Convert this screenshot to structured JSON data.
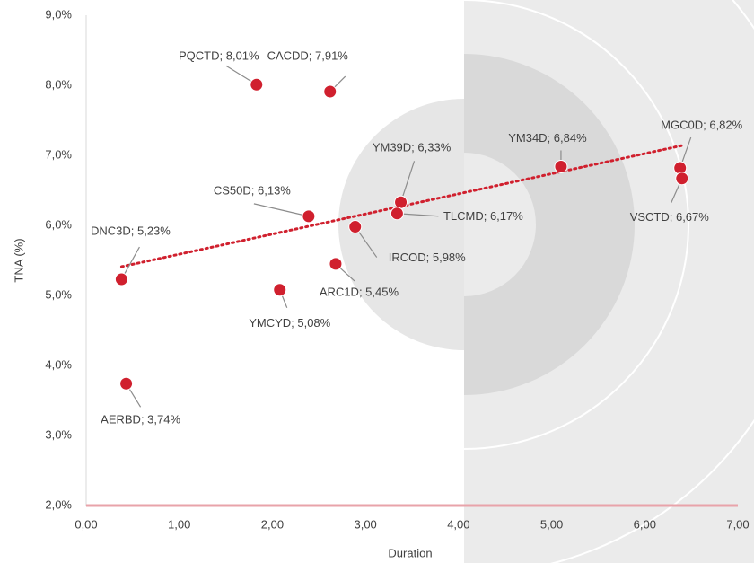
{
  "chart_data": {
    "type": "scatter",
    "x_label": "Duration",
    "y_label": "TNA (%)",
    "color": "#d0202e",
    "x": [
      1.83,
      2.62,
      3.38,
      3.34,
      2.39,
      2.89,
      2.68,
      2.08,
      0.38,
      0.43,
      5.1,
      6.38,
      6.4
    ],
    "values": [
      8.01,
      7.91,
      6.33,
      6.17,
      6.13,
      5.98,
      5.45,
      5.08,
      5.23,
      3.74,
      6.84,
      6.82,
      6.67
    ],
    "value_labels": [
      "PQCTD; 8,01%",
      "CACDD; 7,91%",
      "YM39D; 6,33%",
      "TLCMD; 6,17%",
      "CS50D; 6,13%",
      "IRCOD; 5,98%",
      "ARC1D; 5,45%",
      "YMCYD; 5,08%",
      "DNC3D; 5,23%",
      "AERBD; 3,74%",
      "YM34D; 6,84%",
      "MGC0D; 6,82%",
      "VSCTD; 6,67%"
    ],
    "trendline": {
      "x": [
        0.38,
        6.4
      ],
      "y": [
        5.41,
        7.14
      ],
      "color": "#d0202e"
    },
    "xlim": [
      0,
      7
    ],
    "ylim": [
      2,
      9
    ],
    "xticks": [
      {
        "value": 0,
        "label": "0,00"
      },
      {
        "value": 1,
        "label": "1,00"
      },
      {
        "value": 2,
        "label": "2,00"
      },
      {
        "value": 3,
        "label": "3,00"
      },
      {
        "value": 4,
        "label": "4,00"
      },
      {
        "value": 5,
        "label": "5,00"
      },
      {
        "value": 6,
        "label": "6,00"
      },
      {
        "value": 7,
        "label": "7,00"
      }
    ],
    "yticks": [
      {
        "value": 2,
        "label": "2,0%"
      },
      {
        "value": 3,
        "label": "3,0%"
      },
      {
        "value": 4,
        "label": "4,0%"
      },
      {
        "value": 5,
        "label": "5,0%"
      },
      {
        "value": 6,
        "label": "6,0%"
      },
      {
        "value": 7,
        "label": "7,0%"
      },
      {
        "value": 8,
        "label": "8,0%"
      },
      {
        "value": 9,
        "label": "9,0%"
      }
    ]
  }
}
